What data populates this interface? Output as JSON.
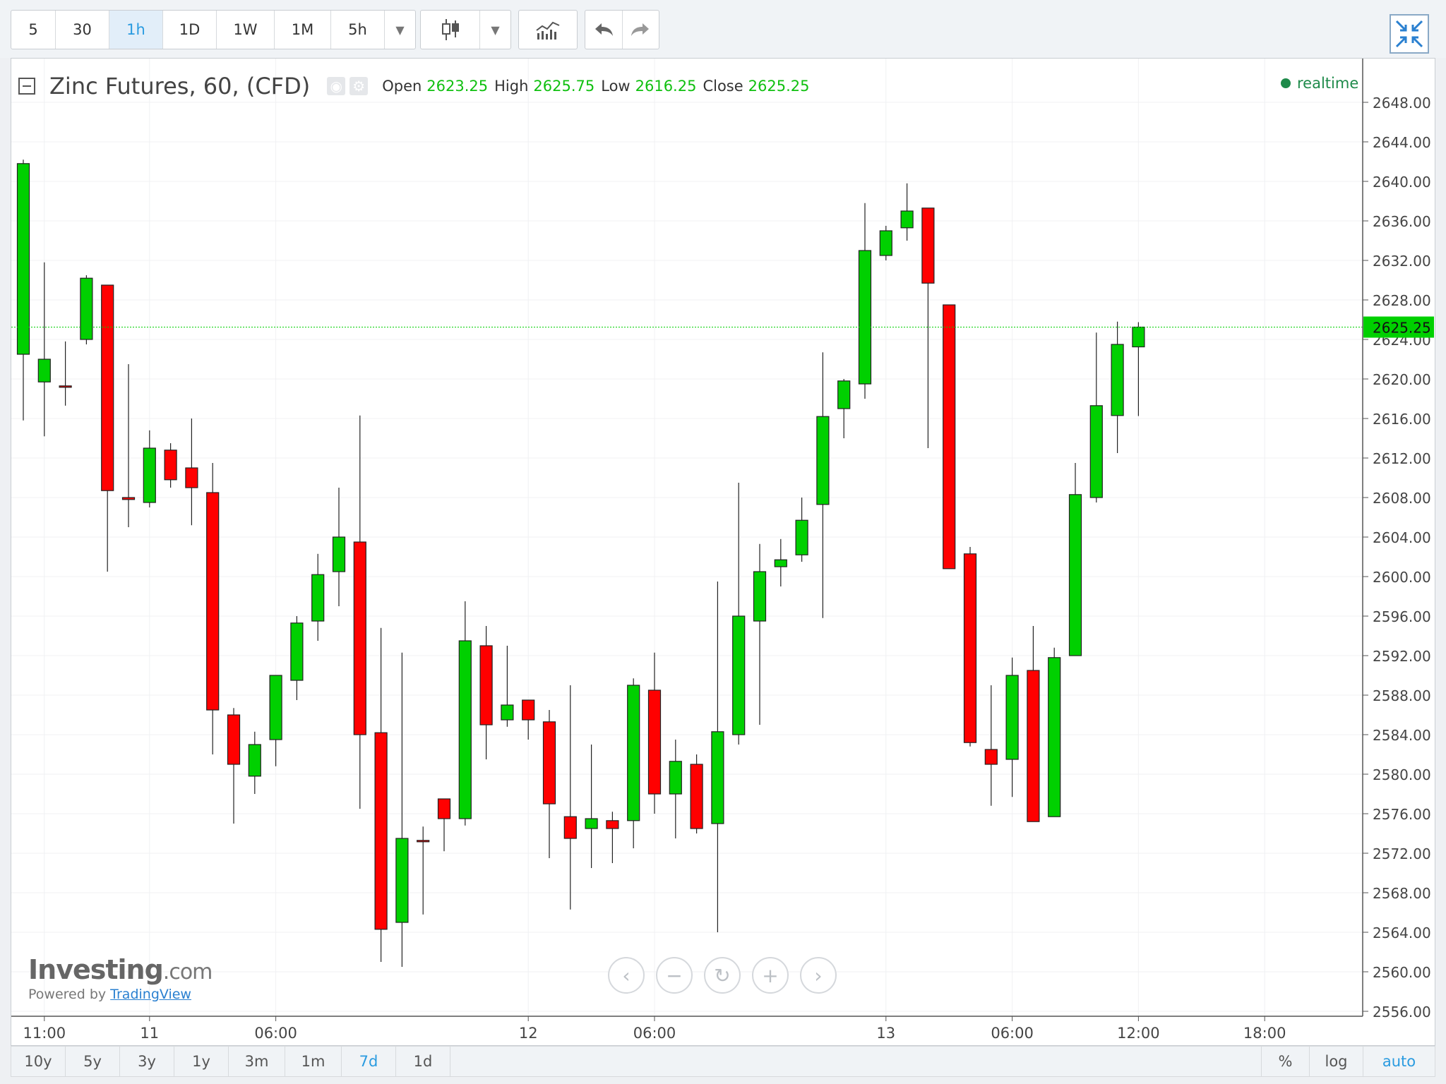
{
  "toolbar": {
    "intervals": [
      "5",
      "30",
      "1h",
      "1D",
      "1W",
      "1M",
      "5h"
    ],
    "active_interval": "1h",
    "dropdown_icon": "caret-down-icon",
    "chart_type_icon": "candles-icon",
    "indicators_icon": "indicators-icon",
    "undo_icon": "undo-icon",
    "redo_icon": "redo-icon",
    "fullscreen_icon": "collapse-icon"
  },
  "legend": {
    "collapse_icon": "minus-box-icon",
    "title": "Zinc Futures, 60, (CFD)",
    "eye_icon": "eye-icon",
    "gear_icon": "gear-icon",
    "open_label": "Open",
    "open": "2623.25",
    "high_label": "High",
    "high": "2625.75",
    "low_label": "Low",
    "low": "2616.25",
    "close_label": "Close",
    "close": "2625.25",
    "realtime": "realtime"
  },
  "watermark": {
    "logo_main": "Investing",
    "logo_suffix": ".com",
    "powered": "Powered by",
    "tradingview": "TradingView"
  },
  "nav": [
    "chevron-left-icon",
    "minus-icon",
    "reset-icon",
    "plus-icon",
    "chevron-right-icon"
  ],
  "bottombar": {
    "ranges": [
      "10y",
      "5y",
      "3y",
      "1y",
      "3m",
      "1m",
      "7d",
      "1d"
    ],
    "active_range": "7d",
    "scales": [
      "%",
      "log",
      "auto"
    ],
    "active_scale": "auto"
  },
  "colors": {
    "up": "#00d000",
    "down": "#ff0000",
    "last_line": "#00d000",
    "accent": "#2a9be0"
  },
  "chart_data": {
    "type": "candlestick",
    "title": "Zinc Futures, 60, (CFD)",
    "ylim": [
      2555,
      2652
    ],
    "yticks": [
      2556,
      2560,
      2564,
      2568,
      2572,
      2576,
      2580,
      2584,
      2588,
      2592,
      2596,
      2600,
      2604,
      2608,
      2612,
      2616,
      2620,
      2624,
      2628,
      2632,
      2636,
      2640,
      2644,
      2648
    ],
    "ytick_labels": [
      "2556.00",
      "2560.00",
      "2564.00",
      "2568.00",
      "2572.00",
      "2576.00",
      "2580.00",
      "2584.00",
      "2588.00",
      "2592.00",
      "2596.00",
      "2600.00",
      "2604.00",
      "2608.00",
      "2612.00",
      "2616.00",
      "2620.00",
      "2624.00",
      "2628.00",
      "2632.00",
      "2636.00",
      "2640.00",
      "2644.00",
      "2648.00"
    ],
    "xticks": [
      {
        "bar": 1,
        "label": "11:00"
      },
      {
        "bar": 6,
        "label": "11"
      },
      {
        "bar": 12,
        "label": "06:00"
      },
      {
        "bar": 24,
        "label": "12"
      },
      {
        "bar": 30,
        "label": "06:00"
      },
      {
        "bar": 41,
        "label": "13"
      },
      {
        "bar": 47,
        "label": "06:00"
      },
      {
        "bar": 53,
        "label": "12:00"
      },
      {
        "bar": 59,
        "label": "18:00"
      }
    ],
    "last_price": 2625.25,
    "last_price_label": "2625.25",
    "grid": true,
    "candles": [
      {
        "o": 2622.5,
        "h": 2642.2,
        "l": 2615.8,
        "c": 2641.8
      },
      {
        "o": 2619.7,
        "h": 2631.8,
        "l": 2614.2,
        "c": 2622.0
      },
      {
        "o": 2619.3,
        "h": 2623.8,
        "l": 2617.3,
        "c": 2619.2
      },
      {
        "o": 2624.0,
        "h": 2630.5,
        "l": 2623.5,
        "c": 2630.2
      },
      {
        "o": 2629.5,
        "h": 2629.5,
        "l": 2600.5,
        "c": 2608.7
      },
      {
        "o": 2608.0,
        "h": 2621.5,
        "l": 2605.0,
        "c": 2607.8
      },
      {
        "o": 2607.5,
        "h": 2614.8,
        "l": 2607.0,
        "c": 2613.0
      },
      {
        "o": 2612.8,
        "h": 2613.5,
        "l": 2609.0,
        "c": 2609.8
      },
      {
        "o": 2611.0,
        "h": 2616.0,
        "l": 2605.2,
        "c": 2609.0
      },
      {
        "o": 2608.5,
        "h": 2611.5,
        "l": 2582.0,
        "c": 2586.5
      },
      {
        "o": 2586.0,
        "h": 2586.7,
        "l": 2575.0,
        "c": 2581.0
      },
      {
        "o": 2579.8,
        "h": 2584.3,
        "l": 2578.0,
        "c": 2583.0
      },
      {
        "o": 2583.5,
        "h": 2590.0,
        "l": 2580.8,
        "c": 2590.0
      },
      {
        "o": 2589.5,
        "h": 2596.0,
        "l": 2587.5,
        "c": 2595.3
      },
      {
        "o": 2595.5,
        "h": 2602.3,
        "l": 2593.5,
        "c": 2600.2
      },
      {
        "o": 2600.5,
        "h": 2609.0,
        "l": 2597.0,
        "c": 2604.0
      },
      {
        "o": 2603.5,
        "h": 2616.3,
        "l": 2576.5,
        "c": 2584.0
      },
      {
        "o": 2584.2,
        "h": 2594.8,
        "l": 2561.0,
        "c": 2564.3
      },
      {
        "o": 2565.0,
        "h": 2592.3,
        "l": 2560.5,
        "c": 2573.5
      },
      {
        "o": 2573.3,
        "h": 2574.7,
        "l": 2565.8,
        "c": 2573.2
      },
      {
        "o": 2577.5,
        "h": 2577.5,
        "l": 2572.2,
        "c": 2575.5
      },
      {
        "o": 2575.5,
        "h": 2597.5,
        "l": 2574.8,
        "c": 2593.5
      },
      {
        "o": 2593.0,
        "h": 2595.0,
        "l": 2581.5,
        "c": 2585.0
      },
      {
        "o": 2585.5,
        "h": 2593.0,
        "l": 2584.8,
        "c": 2587.0
      },
      {
        "o": 2587.5,
        "h": 2587.5,
        "l": 2583.5,
        "c": 2585.5
      },
      {
        "o": 2585.3,
        "h": 2586.5,
        "l": 2571.5,
        "c": 2577.0
      },
      {
        "o": 2575.7,
        "h": 2589.0,
        "l": 2566.3,
        "c": 2573.5
      },
      {
        "o": 2574.5,
        "h": 2583.0,
        "l": 2570.5,
        "c": 2575.5
      },
      {
        "o": 2575.3,
        "h": 2576.2,
        "l": 2571.0,
        "c": 2574.5
      },
      {
        "o": 2575.3,
        "h": 2589.7,
        "l": 2572.5,
        "c": 2589.0
      },
      {
        "o": 2588.5,
        "h": 2592.3,
        "l": 2576.0,
        "c": 2578.0
      },
      {
        "o": 2578.0,
        "h": 2583.5,
        "l": 2573.5,
        "c": 2581.3
      },
      {
        "o": 2581.0,
        "h": 2582.0,
        "l": 2574.0,
        "c": 2574.5
      },
      {
        "o": 2575.0,
        "h": 2599.5,
        "l": 2564.0,
        "c": 2584.3
      },
      {
        "o": 2584.0,
        "h": 2609.5,
        "l": 2583.0,
        "c": 2596.0
      },
      {
        "o": 2595.5,
        "h": 2603.3,
        "l": 2585.0,
        "c": 2600.5
      },
      {
        "o": 2601.0,
        "h": 2603.8,
        "l": 2599.0,
        "c": 2601.7
      },
      {
        "o": 2602.2,
        "h": 2608.0,
        "l": 2601.5,
        "c": 2605.7
      },
      {
        "o": 2607.3,
        "h": 2622.7,
        "l": 2595.8,
        "c": 2616.2
      },
      {
        "o": 2617.0,
        "h": 2620.0,
        "l": 2614.0,
        "c": 2619.8
      },
      {
        "o": 2619.5,
        "h": 2637.8,
        "l": 2618.0,
        "c": 2633.0
      },
      {
        "o": 2632.5,
        "h": 2635.5,
        "l": 2632.0,
        "c": 2635.0
      },
      {
        "o": 2635.3,
        "h": 2639.8,
        "l": 2634.0,
        "c": 2637.0
      },
      {
        "o": 2637.3,
        "h": 2637.3,
        "l": 2613.0,
        "c": 2629.7
      },
      {
        "o": 2627.5,
        "h": 2627.5,
        "l": 2600.8,
        "c": 2600.8
      },
      {
        "o": 2602.3,
        "h": 2603.0,
        "l": 2582.8,
        "c": 2583.2
      },
      {
        "o": 2582.5,
        "h": 2589.0,
        "l": 2576.8,
        "c": 2581.0
      },
      {
        "o": 2581.5,
        "h": 2591.8,
        "l": 2577.7,
        "c": 2590.0
      },
      {
        "o": 2590.5,
        "h": 2595.0,
        "l": 2575.2,
        "c": 2575.2
      },
      {
        "o": 2575.7,
        "h": 2592.8,
        "l": 2575.7,
        "c": 2591.8
      },
      {
        "o": 2592.0,
        "h": 2611.5,
        "l": 2592.0,
        "c": 2608.3
      },
      {
        "o": 2608.0,
        "h": 2624.7,
        "l": 2607.5,
        "c": 2617.3
      },
      {
        "o": 2616.3,
        "h": 2625.8,
        "l": 2612.5,
        "c": 2623.5
      },
      {
        "o": 2623.25,
        "h": 2625.75,
        "l": 2616.25,
        "c": 2625.25
      }
    ]
  }
}
